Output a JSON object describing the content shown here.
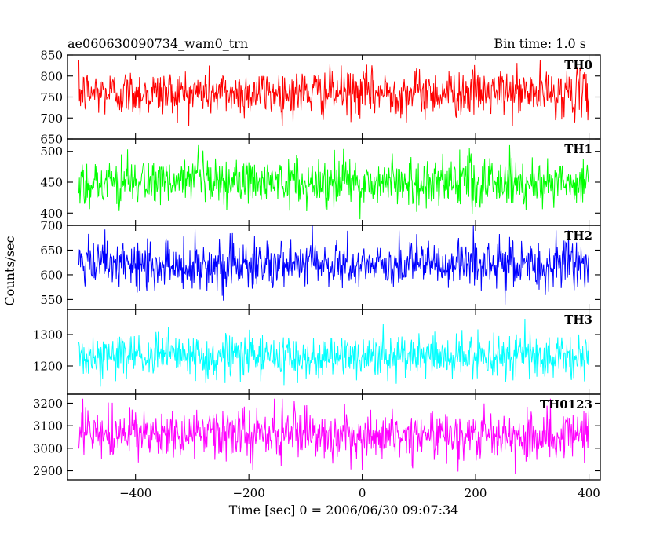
{
  "header": {
    "title": "ae060630090734_wam0_trn",
    "bin_time": "Bin time: 1.0 s"
  },
  "chart_data": {
    "type": "line",
    "title": "ae060630090734_wam0_trn",
    "subtitle": "Bin time: 1.0 s",
    "xlabel": "Time [sec] 0 = 2006/06/30 09:07:34",
    "ylabel": "Counts/sec",
    "xlim": [
      -520,
      420
    ],
    "x_ticks": [
      "−400",
      "−200",
      "0",
      "200",
      "400"
    ],
    "x_tick_values": [
      -400,
      -200,
      0,
      200,
      400
    ],
    "x_range": [
      -500,
      400
    ],
    "panels": [
      {
        "name": "TH0",
        "color": "#ff0000",
        "ylim": [
          650,
          850
        ],
        "y_ticks": [
          650,
          700,
          750,
          800,
          850
        ],
        "mean": 760,
        "sigma": 28,
        "noise_range": [
          680,
          850
        ]
      },
      {
        "name": "TH1",
        "color": "#00ff00",
        "ylim": [
          380,
          520
        ],
        "y_ticks": [
          400,
          450,
          500
        ],
        "mean": 450,
        "sigma": 20,
        "noise_range": [
          390,
          510
        ]
      },
      {
        "name": "TH2",
        "color": "#0000ff",
        "ylim": [
          530,
          700
        ],
        "y_ticks": [
          550,
          600,
          650,
          700
        ],
        "mean": 620,
        "sigma": 25,
        "noise_range": [
          540,
          700
        ]
      },
      {
        "name": "TH3",
        "color": "#00ffff",
        "ylim": [
          1110,
          1380
        ],
        "y_ticks": [
          1200,
          1300
        ],
        "mean": 1230,
        "sigma": 35,
        "noise_range": [
          1130,
          1350
        ]
      },
      {
        "name": "TH0123",
        "color": "#ff00ff",
        "ylim": [
          2860,
          3240
        ],
        "y_ticks": [
          2900,
          3000,
          3100,
          3200
        ],
        "mean": 3060,
        "sigma": 55,
        "noise_range": [
          2880,
          3220
        ]
      }
    ]
  }
}
